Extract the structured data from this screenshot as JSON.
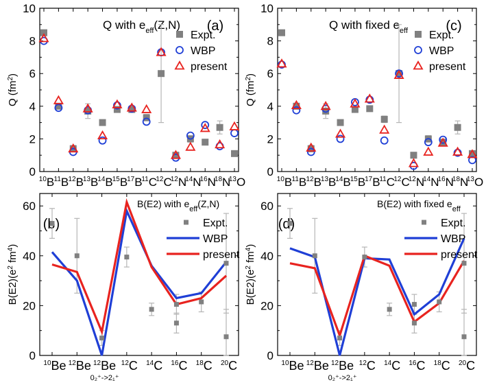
{
  "colors": {
    "expt": "#808080",
    "wbp": "#1f3fd6",
    "present": "#e8231f",
    "axis": "#000000"
  },
  "chart_data": [
    {
      "id": "a",
      "type": "scatter",
      "panel_label": "(a)",
      "title": "Q with e_eff(Z,N)",
      "title_parts": {
        "main": "Q with e",
        "sub": "eff",
        "tail": "(Z,N)"
      },
      "ylabel": {
        "main": "Q (fm",
        "sup": "2",
        "tail": ")"
      },
      "ylim": [
        0,
        10
      ],
      "yticks": [
        0,
        2,
        4,
        6,
        8,
        10
      ],
      "categories": [
        {
          "mass": "10",
          "el": "B"
        },
        {
          "mass": "11",
          "el": "B"
        },
        {
          "mass": "12",
          "el": "B"
        },
        {
          "mass": "13",
          "el": "B"
        },
        {
          "mass": "14",
          "el": "B"
        },
        {
          "mass": "15",
          "el": "B"
        },
        {
          "mass": "17",
          "el": "B"
        },
        {
          "mass": "11",
          "el": "C"
        },
        {
          "mass": "12",
          "el": "C"
        },
        {
          "mass": "12",
          "el": "N"
        },
        {
          "mass": "14",
          "el": "N"
        },
        {
          "mass": "16",
          "el": "N"
        },
        {
          "mass": "18",
          "el": "N"
        },
        {
          "mass": "13",
          "el": "O"
        }
      ],
      "series": [
        {
          "name": "Expt.",
          "marker": "square",
          "values": [
            8.5,
            4.0,
            1.4,
            3.7,
            3.0,
            3.8,
            3.8,
            3.3,
            6.0,
            1.0,
            2.0,
            1.8,
            2.7,
            1.1
          ],
          "err": [
            0.15,
            0.1,
            0.2,
            0.45,
            0.1,
            0.1,
            0.1,
            0.2,
            3.0,
            0.1,
            0.2,
            0.1,
            0.4,
            0.1
          ]
        },
        {
          "name": "WBP",
          "marker": "circle",
          "values": [
            8.0,
            3.9,
            1.2,
            3.75,
            1.9,
            4.05,
            3.85,
            3.05,
            7.3,
            0.85,
            2.2,
            2.85,
            1.55,
            2.35
          ]
        },
        {
          "name": "present",
          "marker": "triangle",
          "values": [
            8.15,
            4.35,
            1.4,
            3.85,
            2.2,
            4.1,
            3.9,
            3.8,
            7.3,
            1.0,
            1.5,
            2.65,
            1.65,
            2.75
          ]
        }
      ]
    },
    {
      "id": "c",
      "type": "scatter",
      "panel_label": "(c)",
      "title": "Q with fixed e_eff",
      "title_parts": {
        "main": "Q with fixed e",
        "sub": "eff",
        "tail": ""
      },
      "ylabel": {
        "main": "Q (fm",
        "sup": "2",
        "tail": ")"
      },
      "ylim": [
        0,
        10
      ],
      "yticks": [
        0,
        2,
        4,
        6,
        8,
        10
      ],
      "categories": [
        {
          "mass": "10",
          "el": "B"
        },
        {
          "mass": "11",
          "el": "B"
        },
        {
          "mass": "12",
          "el": "B"
        },
        {
          "mass": "13",
          "el": "B"
        },
        {
          "mass": "14",
          "el": "B"
        },
        {
          "mass": "15",
          "el": "B"
        },
        {
          "mass": "17",
          "el": "B"
        },
        {
          "mass": "11",
          "el": "C"
        },
        {
          "mass": "12",
          "el": "C"
        },
        {
          "mass": "12",
          "el": "N"
        },
        {
          "mass": "14",
          "el": "N"
        },
        {
          "mass": "16",
          "el": "N"
        },
        {
          "mass": "18",
          "el": "N"
        },
        {
          "mass": "13",
          "el": "O"
        }
      ],
      "series": [
        {
          "name": "Expt.",
          "marker": "square",
          "values": [
            8.5,
            4.0,
            1.4,
            3.7,
            3.0,
            3.8,
            3.85,
            3.2,
            6.0,
            1.0,
            2.0,
            1.8,
            2.7,
            1.1
          ],
          "err": [
            0.15,
            0.1,
            0.2,
            0.45,
            0.1,
            0.1,
            0.1,
            0.2,
            3.0,
            0.1,
            0.2,
            0.1,
            0.4,
            0.1
          ]
        },
        {
          "name": "WBP",
          "marker": "circle",
          "values": [
            6.55,
            3.75,
            1.2,
            3.85,
            2.0,
            4.25,
            4.4,
            1.9,
            6.0,
            0.35,
            1.8,
            1.95,
            1.15,
            0.7
          ]
        },
        {
          "name": "present",
          "marker": "triangle",
          "values": [
            6.6,
            4.05,
            1.45,
            4.0,
            2.3,
            4.15,
            4.45,
            2.55,
            5.9,
            0.5,
            1.2,
            1.75,
            1.2,
            1.05
          ]
        }
      ]
    },
    {
      "id": "b",
      "type": "line",
      "panel_label": "(b)",
      "title": "B(E2) with e_eff(Z,N)",
      "title_parts": {
        "main": "B(E2) with e",
        "sub": "eff",
        "tail": "(Z,N)"
      },
      "ylabel": {
        "main": "B(E2)(e",
        "sup": "2",
        "mid": " fm",
        "sup2": "4",
        "tail": ")"
      },
      "ylim": [
        0,
        65
      ],
      "yticks": [
        0,
        20,
        40,
        60
      ],
      "categories": [
        {
          "mass": "10",
          "el": "Be"
        },
        {
          "mass": "12",
          "el": "Be"
        },
        {
          "mass": "12",
          "el": "Be",
          "note": "0+2->2+1"
        },
        {
          "mass": "12",
          "el": "C"
        },
        {
          "mass": "14",
          "el": "C"
        },
        {
          "mass": "16",
          "el": "C"
        },
        {
          "mass": "18",
          "el": "C"
        },
        {
          "mass": "20",
          "el": "C"
        }
      ],
      "transition_note": "0₂⁺->2₁⁺",
      "series": [
        {
          "name": "Expt.",
          "marker": "square",
          "points": [
            {
              "x": 0,
              "y": 53,
              "err": 6
            },
            {
              "x": 1,
              "y": 40,
              "err": 15
            },
            {
              "x": 2,
              "y": 7,
              "err": 3
            },
            {
              "x": 3,
              "y": 39.5,
              "err": 4
            },
            {
              "x": 4,
              "y": 18.5,
              "err": 2.5
            },
            {
              "x": 5,
              "y": 20.5,
              "err": 4
            },
            {
              "x": 5,
              "y": 13,
              "err": 4
            },
            {
              "x": 6,
              "y": 21.5,
              "err": 4
            },
            {
              "x": 7,
              "y": 37,
              "err": 20
            },
            {
              "x": 7,
              "y": 7.5,
              "err": 11
            }
          ]
        },
        {
          "name": "WBP",
          "values": [
            41.5,
            30,
            0,
            58,
            36,
            23,
            25,
            37.5
          ]
        },
        {
          "name": "present",
          "values": [
            36.5,
            33.5,
            9.5,
            61.5,
            35.5,
            20.5,
            23,
            32
          ]
        }
      ]
    },
    {
      "id": "d",
      "type": "line",
      "panel_label": "(d)",
      "title": "B(E2) with fixed e_eff",
      "title_parts": {
        "main": "B(E2) with fixed e",
        "sub": "eff",
        "tail": ""
      },
      "ylabel": {
        "main": "B(E2)(e",
        "sup": "2",
        "mid": " fm",
        "sup2": "4",
        "tail": ")"
      },
      "ylim": [
        0,
        65
      ],
      "yticks": [
        0,
        20,
        40,
        60
      ],
      "categories": [
        {
          "mass": "10",
          "el": "Be"
        },
        {
          "mass": "12",
          "el": "Be"
        },
        {
          "mass": "12",
          "el": "Be",
          "note": "0+2->2+1"
        },
        {
          "mass": "12",
          "el": "C"
        },
        {
          "mass": "14",
          "el": "C"
        },
        {
          "mass": "16",
          "el": "C"
        },
        {
          "mass": "18",
          "el": "C"
        },
        {
          "mass": "20",
          "el": "C"
        }
      ],
      "transition_note": "0₂⁺->2₁⁺",
      "series": [
        {
          "name": "Expt.",
          "marker": "square",
          "points": [
            {
              "x": 0,
              "y": 53,
              "err": 6
            },
            {
              "x": 1,
              "y": 40,
              "err": 15
            },
            {
              "x": 2,
              "y": 7,
              "err": 3
            },
            {
              "x": 3,
              "y": 39.5,
              "err": 4
            },
            {
              "x": 4,
              "y": 18.5,
              "err": 2.5
            },
            {
              "x": 5,
              "y": 20.5,
              "err": 4
            },
            {
              "x": 5,
              "y": 13,
              "err": 4
            },
            {
              "x": 6,
              "y": 21.5,
              "err": 4
            },
            {
              "x": 7,
              "y": 37,
              "err": 20
            },
            {
              "x": 7,
              "y": 7.5,
              "err": 11
            }
          ]
        },
        {
          "name": "WBP",
          "values": [
            43,
            39.5,
            0,
            39,
            38.5,
            16.5,
            24.5,
            47
          ]
        },
        {
          "name": "present",
          "values": [
            37,
            35,
            8,
            40,
            36,
            13.5,
            21,
            38
          ]
        }
      ]
    }
  ]
}
